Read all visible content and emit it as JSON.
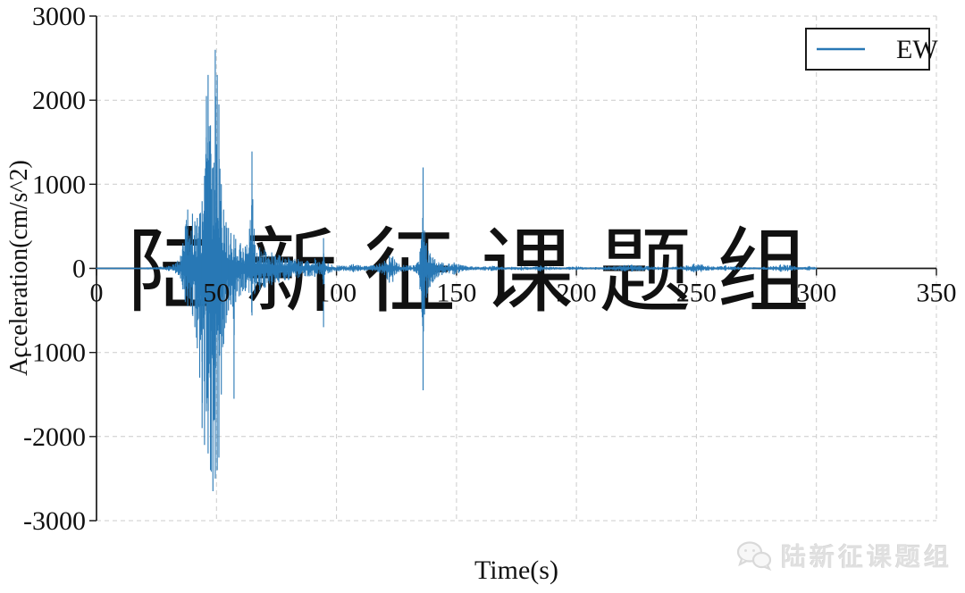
{
  "watermark": {
    "text": "陆新征课题组"
  },
  "footer": {
    "logo_text": "陆新征课题组",
    "icon": "wechat-icon"
  },
  "chart_data": {
    "type": "line",
    "title": "",
    "xlabel": "Time(s)",
    "ylabel": "Acceleration(cm/s^2)",
    "xlim": [
      0,
      350
    ],
    "ylim": [
      -3000,
      3000
    ],
    "xticks": [
      0,
      50,
      100,
      150,
      200,
      250,
      300,
      350
    ],
    "yticks": [
      3000,
      2000,
      1000,
      0,
      -1000,
      -2000,
      -3000
    ],
    "xtick_labels": [
      "0",
      "50",
      "100",
      "150",
      "200",
      "250",
      "300",
      "350"
    ],
    "ytick_labels": [
      "3000",
      "2000",
      "1000",
      "0",
      "-1000",
      "-2000",
      "-3000"
    ],
    "grid": "dashed",
    "legend": {
      "position": "upper right",
      "entries": [
        {
          "label": "EW",
          "color": "#2878b5"
        }
      ]
    },
    "series_color": "#2878b5",
    "axis_color": "#1a1a1a",
    "grid_color": "#cccccc",
    "duration_s": 300,
    "peak_max": 2600,
    "peak_min": -2700,
    "envelope": [
      [
        0,
        6,
        6
      ],
      [
        15,
        8,
        8
      ],
      [
        25,
        15,
        15
      ],
      [
        30,
        30,
        30
      ],
      [
        33,
        60,
        60
      ],
      [
        35,
        150,
        120
      ],
      [
        36,
        300,
        250
      ],
      [
        37,
        500,
        400
      ],
      [
        38,
        700,
        450
      ],
      [
        40,
        650,
        550
      ],
      [
        41,
        560,
        700
      ],
      [
        42,
        600,
        950
      ],
      [
        43,
        650,
        1300
      ],
      [
        44,
        800,
        1900
      ],
      [
        45,
        1100,
        2100
      ],
      [
        45.8,
        2050,
        1700
      ],
      [
        46.5,
        2300,
        2200
      ],
      [
        47.5,
        1700,
        2400
      ],
      [
        48.5,
        1200,
        2650
      ],
      [
        49.5,
        2600,
        2500
      ],
      [
        50.3,
        2300,
        2400
      ],
      [
        51,
        1950,
        2250
      ],
      [
        52,
        1000,
        1500
      ],
      [
        53,
        700,
        900
      ],
      [
        54,
        550,
        650
      ],
      [
        55,
        480,
        500
      ],
      [
        56,
        420,
        430
      ],
      [
        57.3,
        400,
        1550
      ],
      [
        58,
        350,
        400
      ],
      [
        60,
        300,
        320
      ],
      [
        62,
        260,
        270
      ],
      [
        64.8,
        1390,
        560
      ],
      [
        66,
        280,
        290
      ],
      [
        68,
        250,
        260
      ],
      [
        70,
        220,
        230
      ],
      [
        73,
        190,
        200
      ],
      [
        76,
        160,
        170
      ],
      [
        80,
        130,
        140
      ],
      [
        84,
        110,
        115
      ],
      [
        88,
        90,
        95
      ],
      [
        91,
        120,
        100
      ],
      [
        93,
        70,
        70
      ],
      [
        94.2,
        80,
        80
      ],
      [
        94.6,
        360,
        700
      ],
      [
        95,
        80,
        80
      ],
      [
        96.5,
        60,
        60
      ],
      [
        98,
        45,
        45
      ],
      [
        101,
        35,
        35
      ],
      [
        104,
        30,
        30
      ],
      [
        107,
        50,
        45
      ],
      [
        109,
        40,
        35
      ],
      [
        112,
        30,
        30
      ],
      [
        115,
        35,
        30
      ],
      [
        118,
        60,
        55
      ],
      [
        120,
        90,
        80
      ],
      [
        122,
        150,
        170
      ],
      [
        123.5,
        140,
        160
      ],
      [
        125,
        70,
        65
      ],
      [
        128,
        40,
        35
      ],
      [
        131,
        35,
        30
      ],
      [
        133.5,
        60,
        60
      ],
      [
        134.8,
        200,
        250
      ],
      [
        135.6,
        420,
        520
      ],
      [
        136.1,
        1200,
        1450
      ],
      [
        136.7,
        450,
        550
      ],
      [
        137.5,
        300,
        350
      ],
      [
        139,
        180,
        220
      ],
      [
        141,
        110,
        130
      ],
      [
        144,
        70,
        80
      ],
      [
        147,
        55,
        60
      ],
      [
        149,
        70,
        75
      ],
      [
        151,
        50,
        55
      ],
      [
        154,
        30,
        30
      ],
      [
        158,
        20,
        20
      ],
      [
        162,
        25,
        25
      ],
      [
        165,
        30,
        30
      ],
      [
        169,
        20,
        20
      ],
      [
        173,
        18,
        18
      ],
      [
        177,
        25,
        25
      ],
      [
        181,
        15,
        15
      ],
      [
        185,
        35,
        35
      ],
      [
        189,
        20,
        20
      ],
      [
        193,
        14,
        14
      ],
      [
        197,
        18,
        18
      ],
      [
        200,
        25,
        22
      ],
      [
        204,
        14,
        14
      ],
      [
        208,
        16,
        16
      ],
      [
        212,
        22,
        20
      ],
      [
        216,
        28,
        25
      ],
      [
        220,
        40,
        35
      ],
      [
        223,
        45,
        40
      ],
      [
        226,
        35,
        32
      ],
      [
        230,
        28,
        25
      ],
      [
        234,
        20,
        18
      ],
      [
        238,
        16,
        15
      ],
      [
        242,
        22,
        20
      ],
      [
        246,
        35,
        32
      ],
      [
        249,
        55,
        48
      ],
      [
        252,
        48,
        42
      ],
      [
        255,
        32,
        28
      ],
      [
        259,
        22,
        20
      ],
      [
        262,
        35,
        30
      ],
      [
        266,
        25,
        22
      ],
      [
        270,
        16,
        15
      ],
      [
        274,
        13,
        12
      ],
      [
        278,
        18,
        16
      ],
      [
        282,
        28,
        25
      ],
      [
        285,
        45,
        40
      ],
      [
        288,
        40,
        35
      ],
      [
        291,
        25,
        22
      ],
      [
        294,
        16,
        15
      ],
      [
        297,
        28,
        24
      ],
      [
        299,
        18,
        16
      ],
      [
        300,
        8,
        8
      ]
    ]
  }
}
